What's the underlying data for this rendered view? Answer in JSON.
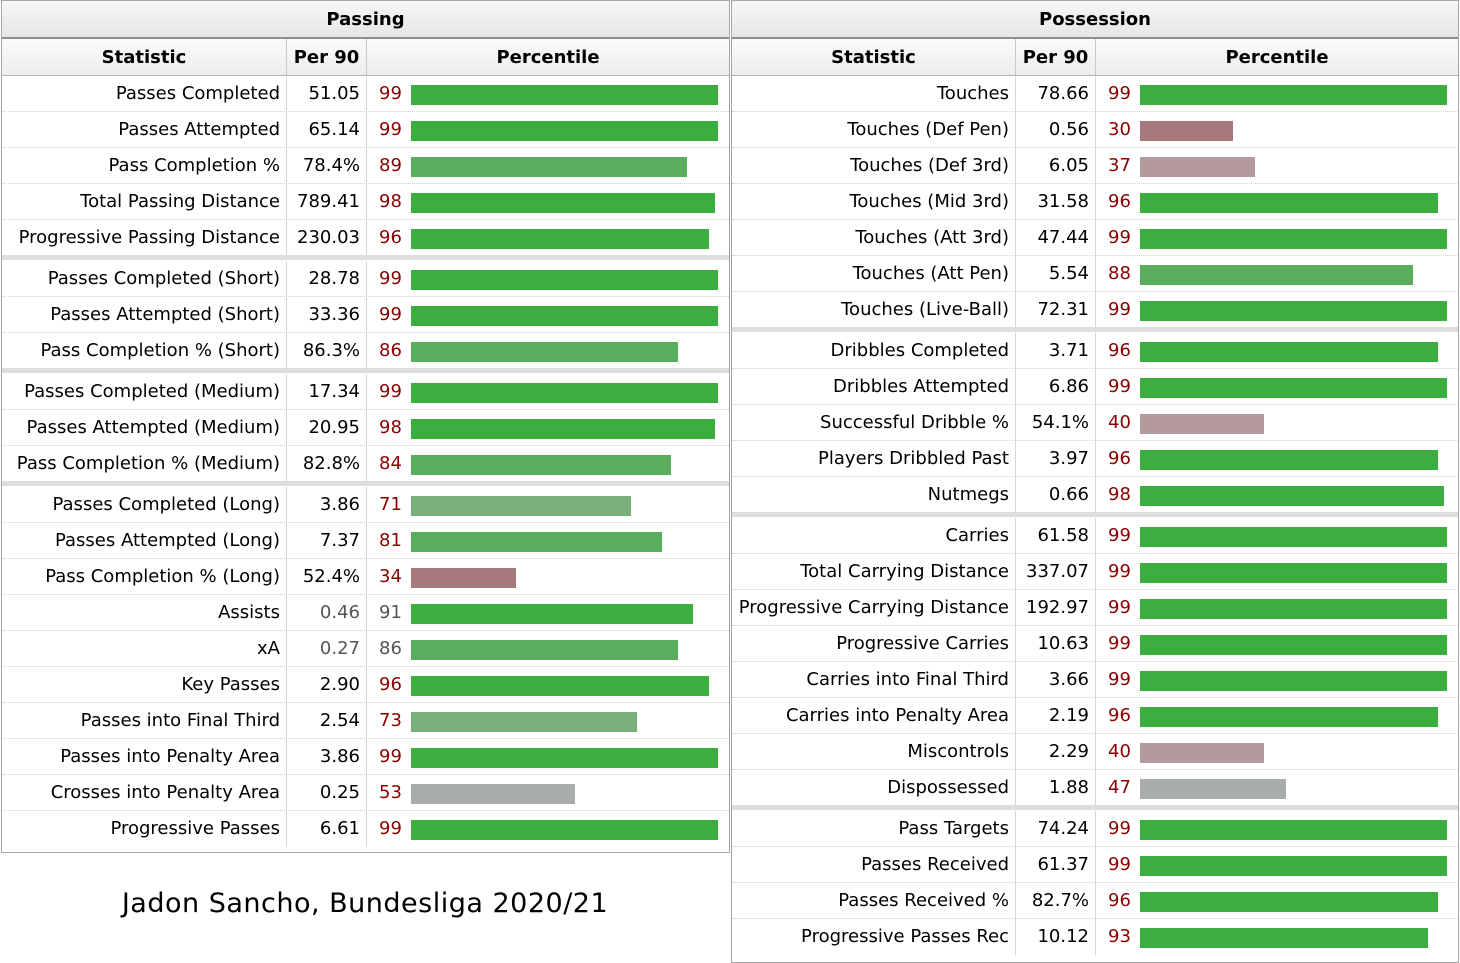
{
  "caption": "Jadon Sancho, Bundesliga 2020/21",
  "colors": {
    "high": "#3cae3f",
    "mid_high": "#5aad5c",
    "mid": "#7aaf7b",
    "neutral": "#a9ada9",
    "low_mid": "#b39a9d",
    "low": "#a67a7c",
    "pct_text": "#8b0000"
  },
  "chart_data": [
    {
      "type": "table",
      "title": "Passing",
      "columns": [
        "Statistic",
        "Per 90",
        "Percentile"
      ],
      "xlim": [
        0,
        100
      ],
      "groups": [
        [
          {
            "statistic": "Passes Completed",
            "per90": "51.05",
            "percentile": 99
          },
          {
            "statistic": "Passes Attempted",
            "per90": "65.14",
            "percentile": 99
          },
          {
            "statistic": "Pass Completion %",
            "per90": "78.4%",
            "percentile": 89
          },
          {
            "statistic": "Total Passing Distance",
            "per90": "789.41",
            "percentile": 98
          },
          {
            "statistic": "Progressive Passing Distance",
            "per90": "230.03",
            "percentile": 96
          }
        ],
        [
          {
            "statistic": "Passes Completed (Short)",
            "per90": "28.78",
            "percentile": 99
          },
          {
            "statistic": "Passes Attempted (Short)",
            "per90": "33.36",
            "percentile": 99
          },
          {
            "statistic": "Pass Completion % (Short)",
            "per90": "86.3%",
            "percentile": 86
          }
        ],
        [
          {
            "statistic": "Passes Completed (Medium)",
            "per90": "17.34",
            "percentile": 99
          },
          {
            "statistic": "Passes Attempted (Medium)",
            "per90": "20.95",
            "percentile": 98
          },
          {
            "statistic": "Pass Completion % (Medium)",
            "per90": "82.8%",
            "percentile": 84
          }
        ],
        [
          {
            "statistic": "Passes Completed (Long)",
            "per90": "3.86",
            "percentile": 71
          },
          {
            "statistic": "Passes Attempted (Long)",
            "per90": "7.37",
            "percentile": 81
          },
          {
            "statistic": "Pass Completion % (Long)",
            "per90": "52.4%",
            "percentile": 34
          },
          {
            "statistic": "Assists",
            "per90": "0.46",
            "percentile": 91,
            "muted": true
          },
          {
            "statistic": "xA",
            "per90": "0.27",
            "percentile": 86,
            "muted": true
          },
          {
            "statistic": "Key Passes",
            "per90": "2.90",
            "percentile": 96
          },
          {
            "statistic": "Passes into Final Third",
            "per90": "2.54",
            "percentile": 73
          },
          {
            "statistic": "Passes into Penalty Area",
            "per90": "3.86",
            "percentile": 99
          },
          {
            "statistic": "Crosses into Penalty Area",
            "per90": "0.25",
            "percentile": 53
          },
          {
            "statistic": "Progressive Passes",
            "per90": "6.61",
            "percentile": 99
          }
        ]
      ]
    },
    {
      "type": "table",
      "title": "Possession",
      "columns": [
        "Statistic",
        "Per 90",
        "Percentile"
      ],
      "xlim": [
        0,
        100
      ],
      "groups": [
        [
          {
            "statistic": "Touches",
            "per90": "78.66",
            "percentile": 99
          },
          {
            "statistic": "Touches (Def Pen)",
            "per90": "0.56",
            "percentile": 30
          },
          {
            "statistic": "Touches (Def 3rd)",
            "per90": "6.05",
            "percentile": 37
          },
          {
            "statistic": "Touches (Mid 3rd)",
            "per90": "31.58",
            "percentile": 96
          },
          {
            "statistic": "Touches (Att 3rd)",
            "per90": "47.44",
            "percentile": 99
          },
          {
            "statistic": "Touches (Att Pen)",
            "per90": "5.54",
            "percentile": 88
          },
          {
            "statistic": "Touches (Live-Ball)",
            "per90": "72.31",
            "percentile": 99
          }
        ],
        [
          {
            "statistic": "Dribbles Completed",
            "per90": "3.71",
            "percentile": 96
          },
          {
            "statistic": "Dribbles Attempted",
            "per90": "6.86",
            "percentile": 99
          },
          {
            "statistic": "Successful Dribble %",
            "per90": "54.1%",
            "percentile": 40
          },
          {
            "statistic": "Players Dribbled Past",
            "per90": "3.97",
            "percentile": 96
          },
          {
            "statistic": "Nutmegs",
            "per90": "0.66",
            "percentile": 98
          }
        ],
        [
          {
            "statistic": "Carries",
            "per90": "61.58",
            "percentile": 99
          },
          {
            "statistic": "Total Carrying Distance",
            "per90": "337.07",
            "percentile": 99
          },
          {
            "statistic": "Progressive Carrying Distance",
            "per90": "192.97",
            "percentile": 99
          },
          {
            "statistic": "Progressive Carries",
            "per90": "10.63",
            "percentile": 99
          },
          {
            "statistic": "Carries into Final Third",
            "per90": "3.66",
            "percentile": 99
          },
          {
            "statistic": "Carries into Penalty Area",
            "per90": "2.19",
            "percentile": 96
          },
          {
            "statistic": "Miscontrols",
            "per90": "2.29",
            "percentile": 40
          },
          {
            "statistic": "Dispossessed",
            "per90": "1.88",
            "percentile": 47
          }
        ],
        [
          {
            "statistic": "Pass Targets",
            "per90": "74.24",
            "percentile": 99
          },
          {
            "statistic": "Passes Received",
            "per90": "61.37",
            "percentile": 99
          },
          {
            "statistic": "Passes Received %",
            "per90": "82.7%",
            "percentile": 96
          },
          {
            "statistic": "Progressive Passes Rec",
            "per90": "10.12",
            "percentile": 93
          }
        ]
      ]
    }
  ]
}
